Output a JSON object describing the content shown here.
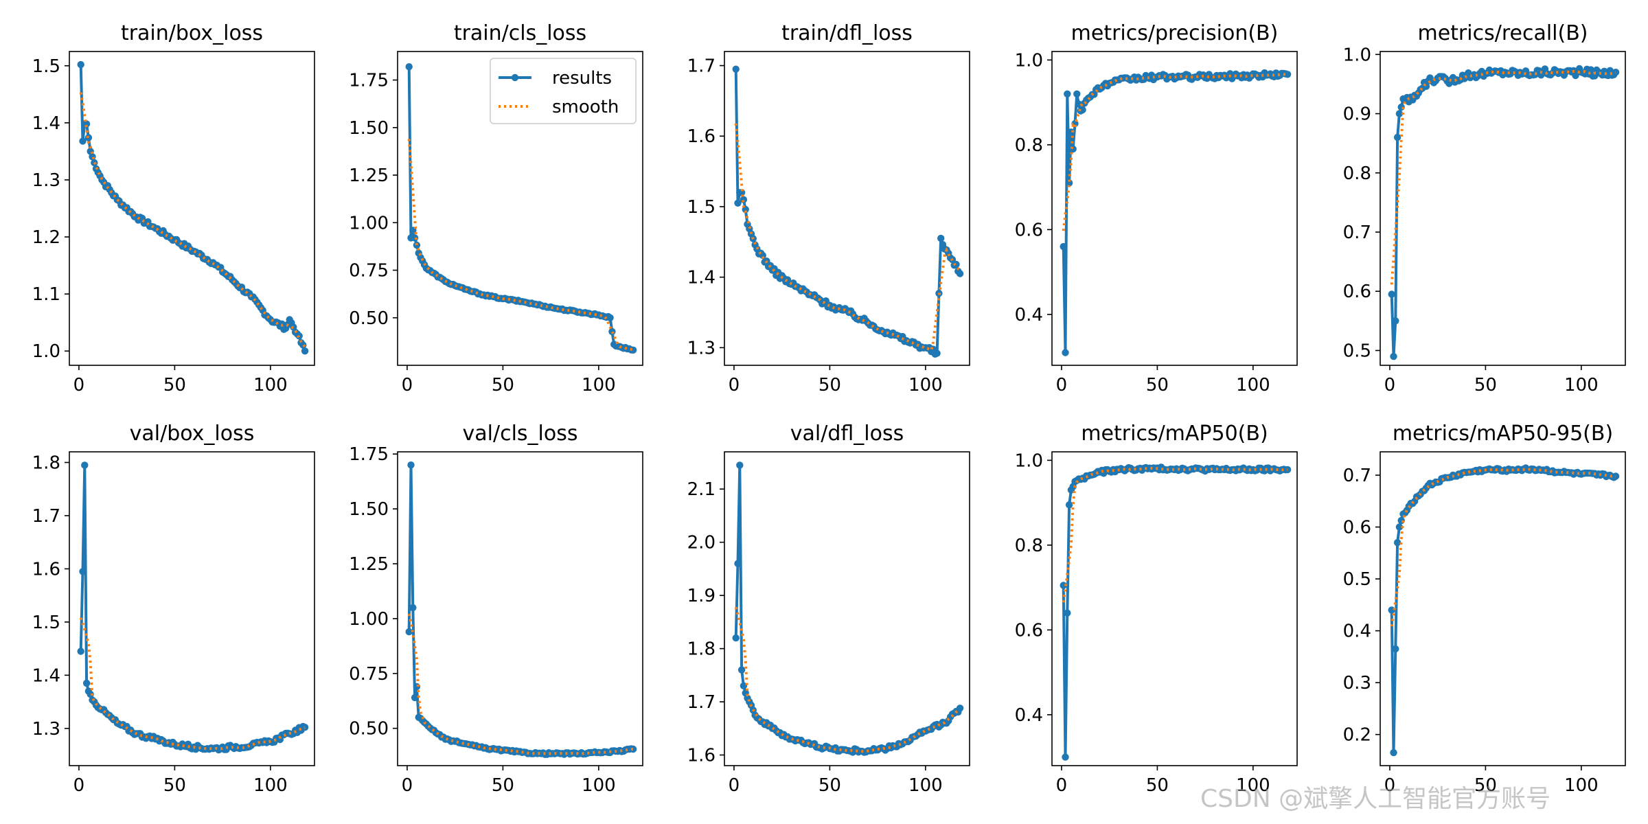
{
  "figure": {
    "legend_location": "top-right of train/cls_loss panel",
    "colors": {
      "results": "#1f77b4",
      "smooth": "#ff7f0e"
    },
    "legend": {
      "results_label": "results",
      "smooth_label": "smooth"
    },
    "watermark": "CSDN @斌擎人工智能官方账号"
  },
  "chart_data": [
    {
      "type": "line",
      "id": "train_box_loss",
      "title": "train/box_loss",
      "xlim": [
        -5,
        123
      ],
      "ylim": [
        0.975,
        1.525
      ],
      "xticks": [
        0,
        50,
        100
      ],
      "yticks": [
        1.0,
        1.1,
        1.2,
        1.3,
        1.4,
        1.5
      ],
      "ytick_labels": [
        "1.0",
        "1.1",
        "1.2",
        "1.3",
        "1.4",
        "1.5"
      ],
      "show_legend": true,
      "x_start": 1,
      "x_end": 118,
      "knots": [
        [
          1,
          1.502
        ],
        [
          2,
          1.368
        ],
        [
          3,
          1.398
        ],
        [
          4,
          1.398
        ],
        [
          6,
          1.35
        ],
        [
          8,
          1.33
        ],
        [
          12,
          1.3
        ],
        [
          20,
          1.265
        ],
        [
          30,
          1.235
        ],
        [
          40,
          1.215
        ],
        [
          50,
          1.195
        ],
        [
          60,
          1.175
        ],
        [
          70,
          1.155
        ],
        [
          80,
          1.125
        ],
        [
          90,
          1.095
        ],
        [
          100,
          1.055
        ],
        [
          108,
          1.04
        ],
        [
          110,
          1.055
        ],
        [
          114,
          1.03
        ],
        [
          118,
          1.0
        ]
      ],
      "jitter": 0.004
    },
    {
      "type": "line",
      "id": "train_cls_loss",
      "title": "train/cls_loss",
      "xlim": [
        -5,
        123
      ],
      "ylim": [
        0.25,
        1.9
      ],
      "xticks": [
        0,
        50,
        100
      ],
      "yticks": [
        0.5,
        0.75,
        1.0,
        1.25,
        1.5,
        1.75
      ],
      "ytick_labels": [
        "0.50",
        "0.75",
        "1.00",
        "1.25",
        "1.50",
        "1.75"
      ],
      "show_legend": true,
      "x_start": 1,
      "x_end": 118,
      "knots": [
        [
          1,
          1.82
        ],
        [
          2,
          0.92
        ],
        [
          3,
          0.96
        ],
        [
          4,
          0.92
        ],
        [
          6,
          0.84
        ],
        [
          10,
          0.76
        ],
        [
          20,
          0.69
        ],
        [
          30,
          0.65
        ],
        [
          40,
          0.62
        ],
        [
          50,
          0.6
        ],
        [
          60,
          0.585
        ],
        [
          70,
          0.565
        ],
        [
          80,
          0.545
        ],
        [
          90,
          0.53
        ],
        [
          100,
          0.515
        ],
        [
          106,
          0.5
        ],
        [
          108,
          0.36
        ],
        [
          110,
          0.35
        ],
        [
          118,
          0.33
        ]
      ],
      "jitter": 0.004
    },
    {
      "type": "line",
      "id": "train_dfl_loss",
      "title": "train/dfl_loss",
      "xlim": [
        -5,
        123
      ],
      "ylim": [
        1.275,
        1.72
      ],
      "xticks": [
        0,
        50,
        100
      ],
      "yticks": [
        1.3,
        1.4,
        1.5,
        1.6,
        1.7
      ],
      "ytick_labels": [
        "1.3",
        "1.4",
        "1.5",
        "1.6",
        "1.7"
      ],
      "show_legend": true,
      "x_start": 1,
      "x_end": 118,
      "knots": [
        [
          1,
          1.695
        ],
        [
          2,
          1.505
        ],
        [
          3,
          1.52
        ],
        [
          4,
          1.52
        ],
        [
          5,
          1.51
        ],
        [
          7,
          1.475
        ],
        [
          12,
          1.44
        ],
        [
          20,
          1.41
        ],
        [
          30,
          1.39
        ],
        [
          40,
          1.375
        ],
        [
          50,
          1.36
        ],
        [
          60,
          1.35
        ],
        [
          70,
          1.335
        ],
        [
          80,
          1.322
        ],
        [
          90,
          1.31
        ],
        [
          100,
          1.3
        ],
        [
          106,
          1.292
        ],
        [
          108,
          1.455
        ],
        [
          110,
          1.44
        ],
        [
          114,
          1.425
        ],
        [
          118,
          1.405
        ]
      ],
      "jitter": 0.004
    },
    {
      "type": "line",
      "id": "metrics_precision",
      "title": "metrics/precision(B)",
      "xlim": [
        -5,
        123
      ],
      "ylim": [
        0.28,
        1.02
      ],
      "xticks": [
        0,
        50,
        100
      ],
      "yticks": [
        0.4,
        0.6,
        0.8,
        1.0
      ],
      "ytick_labels": [
        "0.4",
        "0.6",
        "0.8",
        "1.0"
      ],
      "show_legend": true,
      "x_start": 1,
      "x_end": 118,
      "knots": [
        [
          1,
          0.56
        ],
        [
          2,
          0.31
        ],
        [
          3,
          0.92
        ],
        [
          4,
          0.71
        ],
        [
          5,
          0.83
        ],
        [
          6,
          0.79
        ],
        [
          7,
          0.85
        ],
        [
          8,
          0.92
        ],
        [
          10,
          0.88
        ],
        [
          14,
          0.91
        ],
        [
          18,
          0.93
        ],
        [
          25,
          0.945
        ],
        [
          35,
          0.955
        ],
        [
          50,
          0.96
        ],
        [
          70,
          0.96
        ],
        [
          90,
          0.962
        ],
        [
          118,
          0.966
        ]
      ],
      "jitter": 0.006
    },
    {
      "type": "line",
      "id": "metrics_recall",
      "title": "metrics/recall(B)",
      "xlim": [
        -5,
        123
      ],
      "ylim": [
        0.475,
        1.005
      ],
      "xticks": [
        0,
        50,
        100
      ],
      "yticks": [
        0.5,
        0.6,
        0.7,
        0.8,
        0.9,
        1.0
      ],
      "ytick_labels": [
        "0.5",
        "0.6",
        "0.7",
        "0.8",
        "0.9",
        "1.0"
      ],
      "show_legend": true,
      "x_start": 1,
      "x_end": 118,
      "knots": [
        [
          1,
          0.595
        ],
        [
          2,
          0.49
        ],
        [
          3,
          0.55
        ],
        [
          4,
          0.86
        ],
        [
          5,
          0.9
        ],
        [
          7,
          0.925
        ],
        [
          10,
          0.92
        ],
        [
          15,
          0.935
        ],
        [
          20,
          0.955
        ],
        [
          25,
          0.96
        ],
        [
          30,
          0.955
        ],
        [
          40,
          0.965
        ],
        [
          50,
          0.968
        ],
        [
          60,
          0.97
        ],
        [
          70,
          0.968
        ],
        [
          80,
          0.97
        ],
        [
          90,
          0.97
        ],
        [
          100,
          0.97
        ],
        [
          110,
          0.968
        ],
        [
          118,
          0.97
        ]
      ],
      "jitter": 0.006
    },
    {
      "type": "line",
      "id": "val_box_loss",
      "title": "val/box_loss",
      "xlim": [
        -5,
        123
      ],
      "ylim": [
        1.23,
        1.82
      ],
      "xticks": [
        0,
        50,
        100
      ],
      "yticks": [
        1.3,
        1.4,
        1.5,
        1.6,
        1.7,
        1.8
      ],
      "ytick_labels": [
        "1.3",
        "1.4",
        "1.5",
        "1.6",
        "1.7",
        "1.8"
      ],
      "show_legend": true,
      "x_start": 1,
      "x_end": 118,
      "knots": [
        [
          1,
          1.445
        ],
        [
          2,
          1.595
        ],
        [
          3,
          1.795
        ],
        [
          4,
          1.385
        ],
        [
          5,
          1.37
        ],
        [
          8,
          1.35
        ],
        [
          12,
          1.335
        ],
        [
          20,
          1.31
        ],
        [
          30,
          1.29
        ],
        [
          40,
          1.28
        ],
        [
          50,
          1.27
        ],
        [
          60,
          1.265
        ],
        [
          70,
          1.262
        ],
        [
          80,
          1.265
        ],
        [
          90,
          1.268
        ],
        [
          100,
          1.275
        ],
        [
          110,
          1.29
        ],
        [
          118,
          1.302
        ]
      ],
      "jitter": 0.004
    },
    {
      "type": "line",
      "id": "val_cls_loss",
      "title": "val/cls_loss",
      "xlim": [
        -5,
        123
      ],
      "ylim": [
        0.33,
        1.76
      ],
      "xticks": [
        0,
        50,
        100
      ],
      "yticks": [
        0.5,
        0.75,
        1.0,
        1.25,
        1.5,
        1.75
      ],
      "ytick_labels": [
        "0.50",
        "0.75",
        "1.00",
        "1.25",
        "1.50",
        "1.75"
      ],
      "show_legend": true,
      "x_start": 1,
      "x_end": 118,
      "knots": [
        [
          1,
          0.94
        ],
        [
          2,
          1.7
        ],
        [
          3,
          1.05
        ],
        [
          4,
          0.64
        ],
        [
          5,
          0.69
        ],
        [
          6,
          0.55
        ],
        [
          10,
          0.52
        ],
        [
          15,
          0.48
        ],
        [
          20,
          0.45
        ],
        [
          30,
          0.43
        ],
        [
          40,
          0.41
        ],
        [
          50,
          0.4
        ],
        [
          60,
          0.39
        ],
        [
          70,
          0.385
        ],
        [
          80,
          0.385
        ],
        [
          90,
          0.385
        ],
        [
          100,
          0.39
        ],
        [
          110,
          0.395
        ],
        [
          118,
          0.405
        ]
      ],
      "jitter": 0.004
    },
    {
      "type": "line",
      "id": "val_dfl_loss",
      "title": "val/dfl_loss",
      "xlim": [
        -5,
        123
      ],
      "ylim": [
        1.58,
        2.17
      ],
      "xticks": [
        0,
        50,
        100
      ],
      "yticks": [
        1.6,
        1.7,
        1.8,
        1.9,
        2.0,
        2.1
      ],
      "ytick_labels": [
        "1.6",
        "1.7",
        "1.8",
        "1.9",
        "2.0",
        "2.1"
      ],
      "show_legend": true,
      "x_start": 1,
      "x_end": 118,
      "knots": [
        [
          1,
          1.82
        ],
        [
          2,
          1.96
        ],
        [
          3,
          2.145
        ],
        [
          4,
          1.76
        ],
        [
          5,
          1.73
        ],
        [
          8,
          1.7
        ],
        [
          12,
          1.67
        ],
        [
          20,
          1.65
        ],
        [
          30,
          1.63
        ],
        [
          40,
          1.62
        ],
        [
          50,
          1.612
        ],
        [
          60,
          1.608
        ],
        [
          70,
          1.608
        ],
        [
          80,
          1.612
        ],
        [
          90,
          1.625
        ],
        [
          100,
          1.645
        ],
        [
          110,
          1.66
        ],
        [
          118,
          1.688
        ]
      ],
      "jitter": 0.004
    },
    {
      "type": "line",
      "id": "metrics_map50",
      "title": "metrics/mAP50(B)",
      "xlim": [
        -5,
        123
      ],
      "ylim": [
        0.28,
        1.02
      ],
      "xticks": [
        0,
        50,
        100
      ],
      "yticks": [
        0.4,
        0.6,
        0.8,
        1.0
      ],
      "ytick_labels": [
        "0.4",
        "0.6",
        "0.8",
        "1.0"
      ],
      "show_legend": true,
      "x_start": 1,
      "x_end": 118,
      "knots": [
        [
          1,
          0.705
        ],
        [
          2,
          0.3
        ],
        [
          3,
          0.64
        ],
        [
          4,
          0.895
        ],
        [
          5,
          0.93
        ],
        [
          7,
          0.95
        ],
        [
          10,
          0.955
        ],
        [
          15,
          0.965
        ],
        [
          20,
          0.972
        ],
        [
          30,
          0.978
        ],
        [
          40,
          0.98
        ],
        [
          60,
          0.98
        ],
        [
          80,
          0.978
        ],
        [
          100,
          0.978
        ],
        [
          118,
          0.978
        ]
      ],
      "jitter": 0.004
    },
    {
      "type": "line",
      "id": "metrics_map50_95",
      "title": "metrics/mAP50-95(B)",
      "xlim": [
        -5,
        123
      ],
      "ylim": [
        0.14,
        0.745
      ],
      "xticks": [
        0,
        50,
        100
      ],
      "yticks": [
        0.2,
        0.3,
        0.4,
        0.5,
        0.6,
        0.7
      ],
      "ytick_labels": [
        "0.2",
        "0.3",
        "0.4",
        "0.5",
        "0.6",
        "0.7"
      ],
      "show_legend": true,
      "x_start": 1,
      "x_end": 118,
      "knots": [
        [
          1,
          0.44
        ],
        [
          2,
          0.165
        ],
        [
          3,
          0.365
        ],
        [
          4,
          0.57
        ],
        [
          5,
          0.6
        ],
        [
          7,
          0.625
        ],
        [
          10,
          0.64
        ],
        [
          15,
          0.66
        ],
        [
          20,
          0.68
        ],
        [
          30,
          0.695
        ],
        [
          40,
          0.705
        ],
        [
          50,
          0.71
        ],
        [
          60,
          0.71
        ],
        [
          70,
          0.712
        ],
        [
          80,
          0.71
        ],
        [
          90,
          0.705
        ],
        [
          100,
          0.702
        ],
        [
          110,
          0.7
        ],
        [
          118,
          0.698
        ]
      ],
      "jitter": 0.003
    }
  ]
}
